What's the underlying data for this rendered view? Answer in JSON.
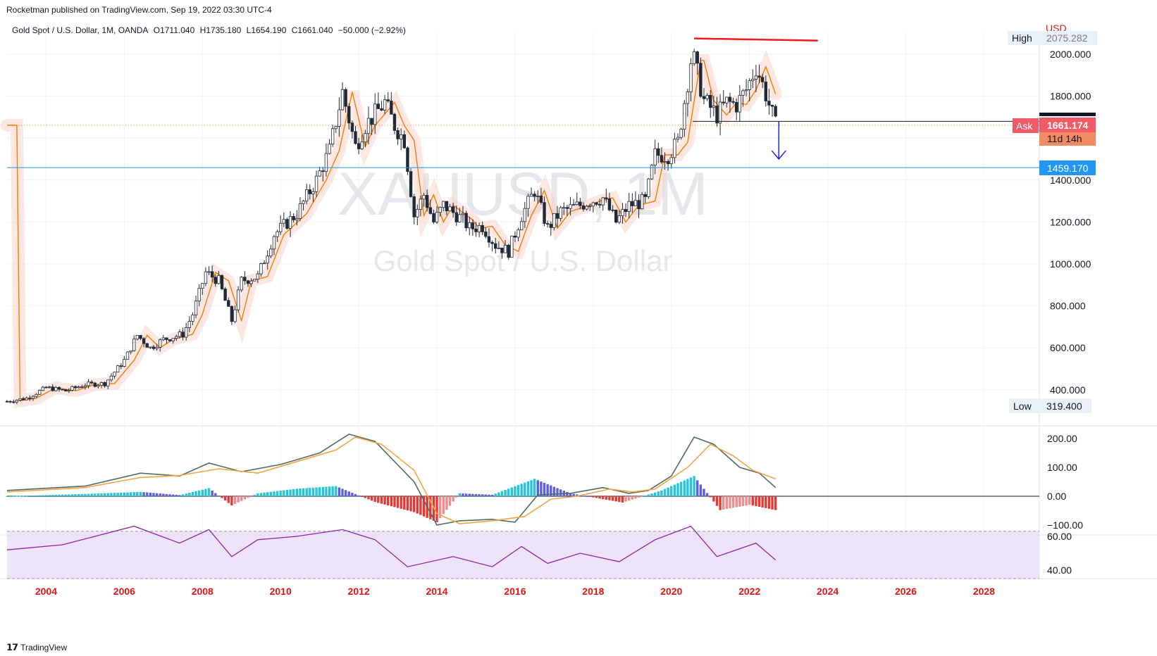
{
  "header": {
    "published": "Rocketman published on TradingView.com, Sep 19, 2022 03:30 UTC-4",
    "symbol": "Gold Spot / U.S. Dollar, 1M, OANDA",
    "open": "O1711.040",
    "high": "H1735.180",
    "low": "L1654.190",
    "close": "C1661.040",
    "change": "−50.000 (−2.92%)"
  },
  "watermark": {
    "ticker": "XAUUSD, 1M",
    "name": "Gold Spot / U.S. Dollar"
  },
  "footer": {
    "brand": "TradingView"
  },
  "colors": {
    "up": "#26a69a",
    "down": "#ef5350",
    "text_x": "#e01616",
    "ma": "#f57c00",
    "resistance": "#f21818",
    "support": "#2196f3",
    "arrow": "#1e22d6",
    "rsi_band": "#e6d9f7",
    "rsi_line": "#8e24aa"
  },
  "price_scale": {
    "currency": "USD",
    "ticks": [
      "2000.000",
      "1800.000",
      "1400.000",
      "1200.000",
      "1000.000",
      "800.000",
      "600.000",
      "400.000"
    ],
    "high_label": "High",
    "high_value": "2075.282",
    "low_label": "Low",
    "low_value": "319.400",
    "ask_label": "Ask",
    "ask_value": "1661.174",
    "countdown": "11d 14h",
    "support_value": "1459.170"
  },
  "macd_scale": [
    "200.00",
    "100.00",
    "0.00",
    "−100.00"
  ],
  "rsi_scale": [
    "60.00",
    "40.00"
  ],
  "time_axis": [
    "2004",
    "2006",
    "2008",
    "2010",
    "2012",
    "2014",
    "2016",
    "2018",
    "2020",
    "2022",
    "2024",
    "2026",
    "2028"
  ],
  "chart_data": [
    {
      "type": "candlestick",
      "title": "Gold Spot / U.S. Dollar, 1M, OANDA",
      "y_unit": "USD",
      "ylim": [
        300,
        2100
      ],
      "x_range": [
        "2003-01",
        "2029-06"
      ],
      "series_points": [
        [
          "2003-01",
          345
        ],
        [
          "2003-07",
          360
        ],
        [
          "2004-01",
          410
        ],
        [
          "2004-07",
          395
        ],
        [
          "2005-01",
          425
        ],
        [
          "2005-07",
          430
        ],
        [
          "2006-01",
          540
        ],
        [
          "2006-05",
          660
        ],
        [
          "2006-09",
          600
        ],
        [
          "2007-01",
          640
        ],
        [
          "2007-07",
          665
        ],
        [
          "2007-10",
          760
        ],
        [
          "2008-02",
          960
        ],
        [
          "2008-06",
          920
        ],
        [
          "2008-10",
          730
        ],
        [
          "2009-01",
          920
        ],
        [
          "2009-06",
          940
        ],
        [
          "2009-11",
          1140
        ],
        [
          "2010-06",
          1240
        ],
        [
          "2010-12",
          1400
        ],
        [
          "2011-04",
          1540
        ],
        [
          "2011-08",
          1820
        ],
        [
          "2011-12",
          1560
        ],
        [
          "2012-03",
          1660
        ],
        [
          "2012-09",
          1770
        ],
        [
          "2012-12",
          1660
        ],
        [
          "2013-03",
          1590
        ],
        [
          "2013-06",
          1230
        ],
        [
          "2013-09",
          1330
        ],
        [
          "2013-12",
          1200
        ],
        [
          "2014-03",
          1280
        ],
        [
          "2014-09",
          1210
        ],
        [
          "2014-11",
          1170
        ],
        [
          "2015-03",
          1180
        ],
        [
          "2015-07",
          1090
        ],
        [
          "2015-11",
          1060
        ],
        [
          "2016-03",
          1230
        ],
        [
          "2016-07",
          1350
        ],
        [
          "2016-11",
          1170
        ],
        [
          "2017-03",
          1250
        ],
        [
          "2017-09",
          1280
        ],
        [
          "2017-12",
          1300
        ],
        [
          "2018-04",
          1315
        ],
        [
          "2018-08",
          1200
        ],
        [
          "2018-12",
          1280
        ],
        [
          "2019-05",
          1300
        ],
        [
          "2019-08",
          1520
        ],
        [
          "2019-12",
          1520
        ],
        [
          "2020-03",
          1580
        ],
        [
          "2020-07",
          1970
        ],
        [
          "2020-08",
          1970
        ],
        [
          "2020-11",
          1780
        ],
        [
          "2021-03",
          1710
        ],
        [
          "2021-06",
          1770
        ],
        [
          "2021-09",
          1760
        ],
        [
          "2021-12",
          1830
        ],
        [
          "2022-03",
          1940
        ],
        [
          "2022-04",
          1900
        ],
        [
          "2022-06",
          1810
        ],
        [
          "2022-08",
          1710
        ],
        [
          "2022-09",
          1661
        ]
      ],
      "levels": [
        {
          "value": 1459.17,
          "name": "support"
        },
        {
          "value": 1680,
          "name": "neckline"
        },
        {
          "from": [
            "2020-08",
            2075
          ],
          "to": [
            "2023-10",
            2065
          ],
          "name": "resistance"
        }
      ]
    },
    {
      "type": "line",
      "title": "MACD",
      "ylim": [
        -125,
        240
      ],
      "series": [
        {
          "name": "macd",
          "points": [
            [
              "2003-01",
              20
            ],
            [
              "2005-01",
              35
            ],
            [
              "2006-06",
              80
            ],
            [
              "2007-06",
              70
            ],
            [
              "2008-03",
              115
            ],
            [
              "2009-01",
              85
            ],
            [
              "2010-01",
              110
            ],
            [
              "2011-01",
              150
            ],
            [
              "2011-10",
              215
            ],
            [
              "2012-06",
              190
            ],
            [
              "2013-06",
              50
            ],
            [
              "2014-01",
              -100
            ],
            [
              "2014-08",
              -85
            ],
            [
              "2015-06",
              -80
            ],
            [
              "2016-01",
              -90
            ],
            [
              "2016-08",
              5
            ],
            [
              "2017-06",
              10
            ],
            [
              "2018-04",
              30
            ],
            [
              "2018-12",
              10
            ],
            [
              "2019-06",
              20
            ],
            [
              "2020-01",
              70
            ],
            [
              "2020-08",
              205
            ],
            [
              "2021-02",
              180
            ],
            [
              "2021-10",
              100
            ],
            [
              "2022-04",
              80
            ],
            [
              "2022-09",
              30
            ]
          ]
        },
        {
          "name": "signal",
          "points": [
            [
              "2003-01",
              15
            ],
            [
              "2005-01",
              30
            ],
            [
              "2006-06",
              65
            ],
            [
              "2007-06",
              72
            ],
            [
              "2008-06",
              95
            ],
            [
              "2009-06",
              80
            ],
            [
              "2010-06",
              120
            ],
            [
              "2011-06",
              160
            ],
            [
              "2011-12",
              205
            ],
            [
              "2012-08",
              180
            ],
            [
              "2013-06",
              90
            ],
            [
              "2014-01",
              -60
            ],
            [
              "2014-08",
              -95
            ],
            [
              "2015-06",
              -85
            ],
            [
              "2016-04",
              -70
            ],
            [
              "2016-12",
              -10
            ],
            [
              "2017-08",
              0
            ],
            [
              "2018-06",
              25
            ],
            [
              "2019-01",
              15
            ],
            [
              "2019-08",
              25
            ],
            [
              "2020-06",
              100
            ],
            [
              "2021-01",
              180
            ],
            [
              "2021-08",
              140
            ],
            [
              "2022-02",
              90
            ],
            [
              "2022-09",
              60
            ]
          ]
        },
        {
          "name": "histogram",
          "points": [
            [
              "2005-01",
              8
            ],
            [
              "2006-06",
              15
            ],
            [
              "2007-06",
              4
            ],
            [
              "2008-03",
              28
            ],
            [
              "2008-10",
              -32
            ],
            [
              "2009-06",
              10
            ],
            [
              "2010-06",
              26
            ],
            [
              "2011-06",
              35
            ],
            [
              "2012-06",
              -20
            ],
            [
              "2013-06",
              -55
            ],
            [
              "2014-01",
              -90
            ],
            [
              "2014-08",
              10
            ],
            [
              "2015-06",
              5
            ],
            [
              "2016-07",
              60
            ],
            [
              "2017-06",
              10
            ],
            [
              "2018-10",
              -22
            ],
            [
              "2019-10",
              20
            ],
            [
              "2020-08",
              70
            ],
            [
              "2021-04",
              -48
            ],
            [
              "2022-01",
              -30
            ],
            [
              "2022-09",
              -48
            ]
          ]
        }
      ]
    },
    {
      "type": "line",
      "title": "RSI",
      "ylim": [
        30,
        70
      ],
      "band": [
        35,
        63
      ],
      "series": [
        {
          "name": "rsi",
          "points": [
            [
              "2003-01",
              52
            ],
            [
              "2004-06",
              55
            ],
            [
              "2006-04",
              66
            ],
            [
              "2007-06",
              56
            ],
            [
              "2008-03",
              64
            ],
            [
              "2008-10",
              48
            ],
            [
              "2009-06",
              58
            ],
            [
              "2010-06",
              60
            ],
            [
              "2011-08",
              64
            ],
            [
              "2012-06",
              58
            ],
            [
              "2013-04",
              42
            ],
            [
              "2014-06",
              48
            ],
            [
              "2015-06",
              42
            ],
            [
              "2016-03",
              54
            ],
            [
              "2016-11",
              44
            ],
            [
              "2017-09",
              50
            ],
            [
              "2018-09",
              45
            ],
            [
              "2019-08",
              58
            ],
            [
              "2020-07",
              66
            ],
            [
              "2021-03",
              48
            ],
            [
              "2022-03",
              56
            ],
            [
              "2022-09",
              46
            ]
          ]
        }
      ]
    }
  ]
}
